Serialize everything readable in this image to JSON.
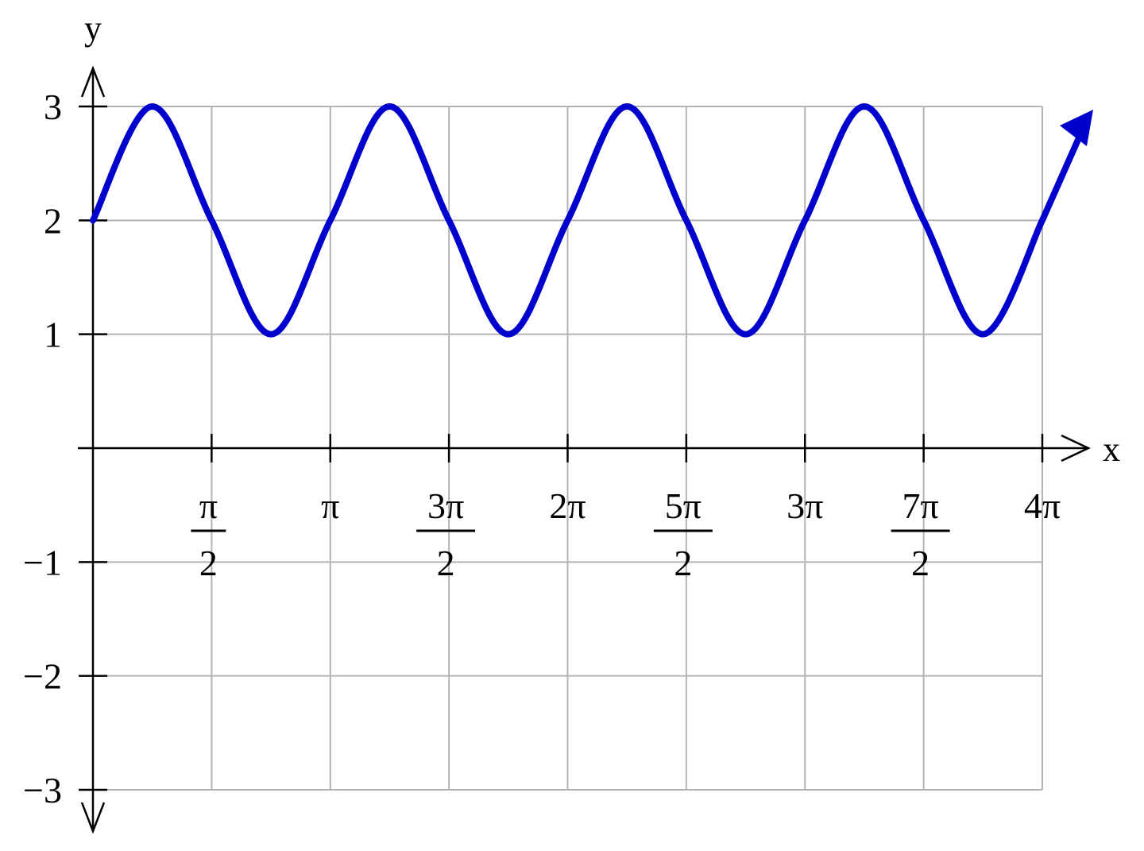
{
  "chart_data": {
    "type": "line",
    "xlabel": "x",
    "ylabel": "y",
    "xlim": [
      0,
      12.566370614359172
    ],
    "ylim": [
      -3,
      3
    ],
    "grid": true,
    "x_ticks": [
      {
        "value": 1.5707963267948966,
        "label_num": "π",
        "label_den": "2"
      },
      {
        "value": 3.141592653589793,
        "label": "π"
      },
      {
        "value": 4.71238898038469,
        "label_num": "3π",
        "label_den": "2"
      },
      {
        "value": 6.283185307179586,
        "label": "2π"
      },
      {
        "value": 7.853981633974483,
        "label_num": "5π",
        "label_den": "2"
      },
      {
        "value": 9.42477796076938,
        "label": "3π"
      },
      {
        "value": 10.995574287564276,
        "label_num": "7π",
        "label_den": "2"
      },
      {
        "value": 12.566370614359172,
        "label": "4π"
      }
    ],
    "y_ticks": [
      {
        "value": 3,
        "label": "3"
      },
      {
        "value": 2,
        "label": "2"
      },
      {
        "value": 1,
        "label": "1"
      },
      {
        "value": -1,
        "label": "−1"
      },
      {
        "value": -2,
        "label": "−2"
      },
      {
        "value": -3,
        "label": "−3"
      }
    ],
    "series": [
      {
        "color": "#0000cc",
        "x": [
          0,
          0.785,
          1.571,
          2.356,
          3.142,
          3.927,
          4.712,
          5.498,
          6.283,
          7.069,
          7.854,
          8.639,
          9.425,
          10.21,
          10.996,
          11.781,
          12.566
        ],
        "y": [
          2,
          3,
          2,
          1,
          2,
          3,
          2,
          1,
          2,
          3,
          2,
          1,
          2,
          3,
          2,
          1,
          2
        ]
      }
    ]
  }
}
